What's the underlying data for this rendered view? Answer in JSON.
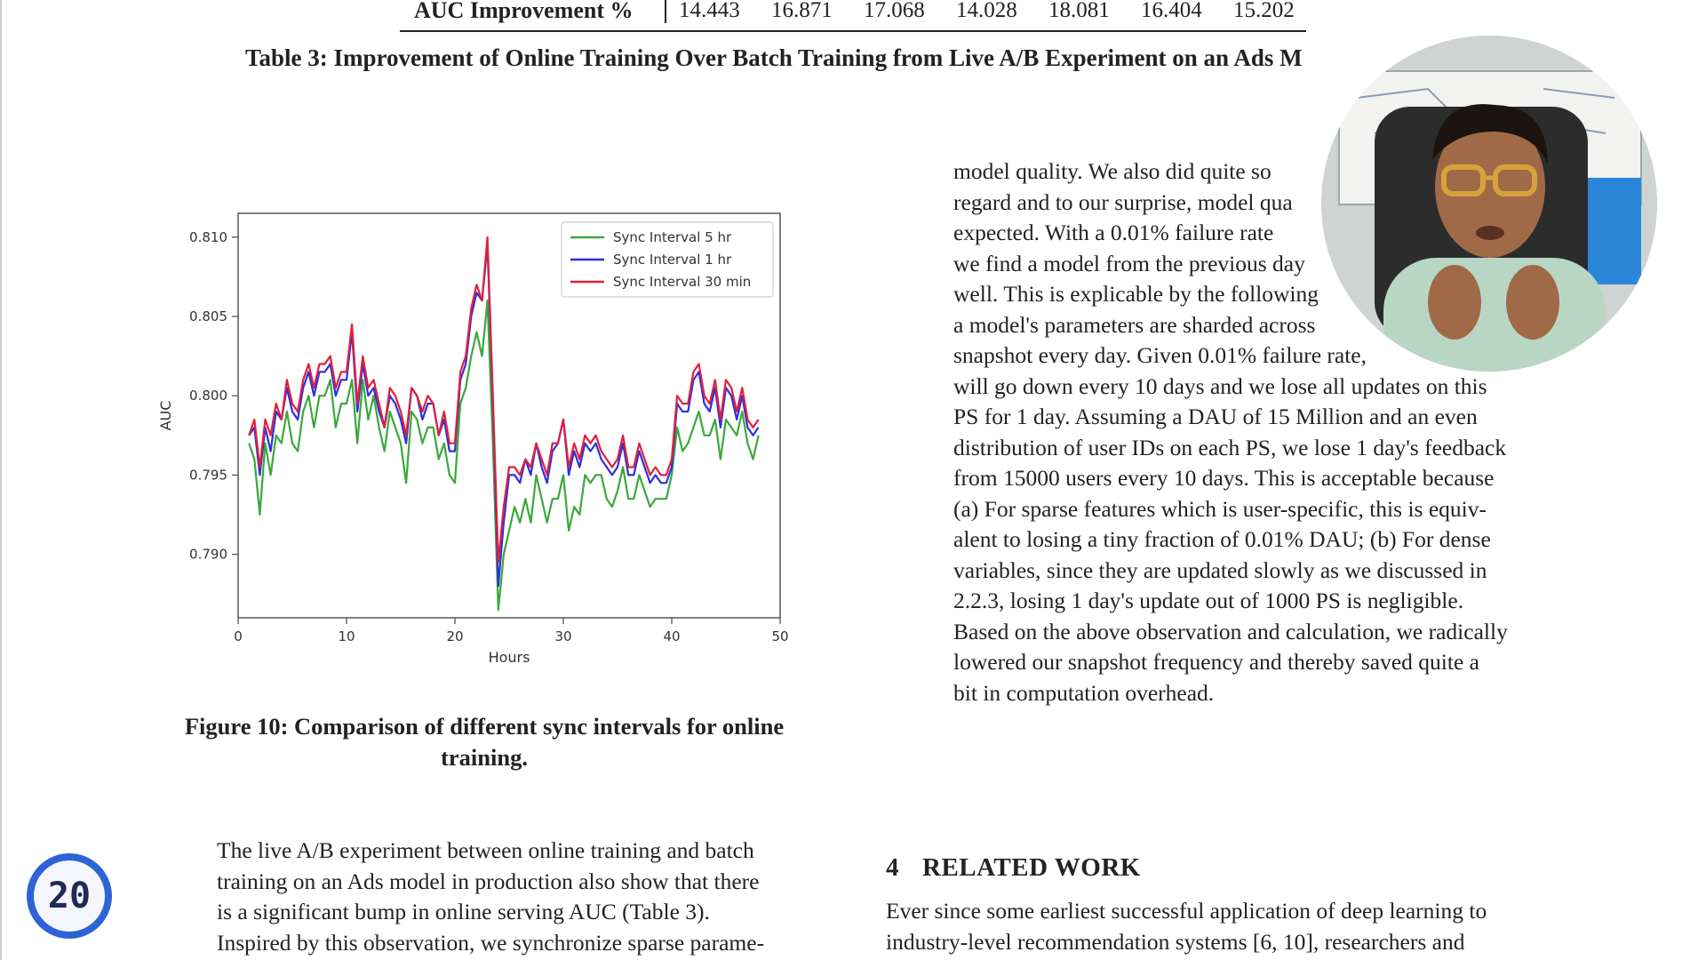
{
  "table_row": {
    "label": "AUC Improvement %",
    "values": [
      "14.443",
      "16.871",
      "17.068",
      "14.028",
      "18.081",
      "16.404",
      "15.202"
    ]
  },
  "table_caption": "Table 3: Improvement of Online Training Over Batch Training from Live A/B Experiment on an Ads M",
  "figure_caption": "Figure 10: Comparison of different sync intervals for online training.",
  "right_column_lines": [
    "model quality. We also did quite so",
    "regard and to our surprise, model qua",
    "expected. With a 0.01% failure rate",
    "we find a model from the previous day",
    "well. This is explicable by the following",
    "a model's parameters are sharded across",
    "snapshot every day. Given 0.01% failure rate,",
    "will go down every 10 days and we lose all updates on this",
    "PS for 1 day. Assuming a DAU of 15 Million and an even",
    "distribution of user IDs on each PS, we lose 1 day's feedback",
    "from 15000 users every 10 days. This is acceptable because",
    "(a) For sparse features which is user-specific, this is equiv-",
    "alent to losing a tiny fraction of 0.01% DAU; (b) For dense",
    "variables, since they are updated slowly as we discussed in",
    "2.2.3, losing 1 day's update out of 1000 PS is negligible.",
    "Based on the above observation and calculation, we radically",
    "lowered our snapshot frequency and thereby saved quite a",
    "bit in computation overhead."
  ],
  "left_bottom_lines": [
    "The live A/B experiment between online training and batch",
    "training on an Ads model in production also show that there",
    "is a significant bump in online serving AUC (Table 3).",
    "Inspired by this observation, we synchronize sparse parame-"
  ],
  "section": {
    "number": "4",
    "title": "RELATED WORK"
  },
  "related_work_lines": [
    "Ever since some earliest successful application of deep learning to",
    "industry-level recommendation systems [6, 10], researchers and"
  ],
  "counter": {
    "value": "20"
  },
  "colors": {
    "series_5hr": "#3aa83a",
    "series_1hr": "#2f2fe0",
    "series_30min": "#e0203a",
    "counter_ring": "#2d63d6"
  },
  "chart_data": {
    "type": "line",
    "title": "",
    "xlabel": "Hours",
    "ylabel": "AUC",
    "xlim": [
      0,
      50
    ],
    "ylim": [
      0.786,
      0.8115
    ],
    "xticks": [
      "0",
      "10",
      "20",
      "30",
      "40",
      "50"
    ],
    "yticks": [
      "0.790",
      "0.795",
      "0.800",
      "0.805",
      "0.810"
    ],
    "legend_position": "top-right",
    "grid": false,
    "x": [
      1,
      1.5,
      2,
      2.5,
      3,
      3.5,
      4,
      4.5,
      5,
      5.5,
      6,
      6.5,
      7,
      7.5,
      8,
      8.5,
      9,
      9.5,
      10,
      10.5,
      11,
      11.5,
      12,
      12.5,
      13,
      13.5,
      14,
      14.5,
      15,
      15.5,
      16,
      16.5,
      17,
      17.5,
      18,
      18.5,
      19,
      19.5,
      20,
      20.5,
      21,
      21.5,
      22,
      22.5,
      23,
      23.5,
      24,
      24.5,
      25,
      25.5,
      26,
      26.5,
      27,
      27.5,
      28,
      28.5,
      29,
      29.5,
      30,
      30.5,
      31,
      31.5,
      32,
      32.5,
      33,
      33.5,
      34,
      34.5,
      35,
      35.5,
      36,
      36.5,
      37,
      37.5,
      38,
      38.5,
      39,
      39.5,
      40,
      40.5,
      41,
      41.5,
      42,
      42.5,
      43,
      43.5,
      44,
      44.5,
      45,
      45.5,
      46,
      46.5,
      47,
      47.5,
      48
    ],
    "series": [
      {
        "name": "Sync Interval 5 hr",
        "values": [
          0.797,
          0.796,
          0.7925,
          0.797,
          0.795,
          0.7975,
          0.797,
          0.799,
          0.797,
          0.7965,
          0.799,
          0.8,
          0.798,
          0.8,
          0.8,
          0.801,
          0.798,
          0.7995,
          0.7995,
          0.801,
          0.797,
          0.801,
          0.7985,
          0.8,
          0.798,
          0.7965,
          0.799,
          0.798,
          0.797,
          0.7945,
          0.799,
          0.7985,
          0.797,
          0.798,
          0.798,
          0.796,
          0.797,
          0.795,
          0.7945,
          0.7995,
          0.8005,
          0.8025,
          0.804,
          0.8025,
          0.806,
          0.797,
          0.7865,
          0.79,
          0.7915,
          0.793,
          0.792,
          0.7935,
          0.792,
          0.795,
          0.7935,
          0.792,
          0.7935,
          0.7935,
          0.795,
          0.7915,
          0.793,
          0.7925,
          0.795,
          0.7945,
          0.795,
          0.795,
          0.7935,
          0.793,
          0.794,
          0.7955,
          0.7935,
          0.7935,
          0.795,
          0.794,
          0.793,
          0.7935,
          0.7935,
          0.7935,
          0.795,
          0.798,
          0.7965,
          0.797,
          0.798,
          0.799,
          0.7975,
          0.7975,
          0.7985,
          0.796,
          0.7985,
          0.798,
          0.7975,
          0.799,
          0.797,
          0.796,
          0.7975
        ]
      },
      {
        "name": "Sync Interval 1 hr",
        "values": [
          0.7975,
          0.798,
          0.795,
          0.798,
          0.7965,
          0.799,
          0.7985,
          0.8005,
          0.799,
          0.7985,
          0.8005,
          0.8015,
          0.8,
          0.8015,
          0.8015,
          0.802,
          0.8,
          0.801,
          0.801,
          0.804,
          0.799,
          0.802,
          0.8,
          0.8005,
          0.799,
          0.798,
          0.8,
          0.7995,
          0.7985,
          0.797,
          0.8005,
          0.8,
          0.7985,
          0.7995,
          0.7995,
          0.7975,
          0.7985,
          0.7965,
          0.7965,
          0.801,
          0.802,
          0.805,
          0.8065,
          0.806,
          0.8095,
          0.7995,
          0.788,
          0.792,
          0.795,
          0.795,
          0.7945,
          0.796,
          0.795,
          0.797,
          0.7955,
          0.7945,
          0.7965,
          0.797,
          0.7985,
          0.795,
          0.7965,
          0.7955,
          0.797,
          0.7965,
          0.797,
          0.796,
          0.7955,
          0.795,
          0.7955,
          0.797,
          0.795,
          0.795,
          0.7965,
          0.7955,
          0.7945,
          0.795,
          0.7945,
          0.7945,
          0.7955,
          0.7995,
          0.799,
          0.799,
          0.801,
          0.8015,
          0.7995,
          0.799,
          0.8005,
          0.798,
          0.8005,
          0.8,
          0.7985,
          0.8,
          0.798,
          0.7975,
          0.798
        ]
      },
      {
        "name": "Sync Interval 30 min",
        "values": [
          0.7975,
          0.7985,
          0.7955,
          0.7985,
          0.7975,
          0.7995,
          0.7985,
          0.801,
          0.7995,
          0.799,
          0.801,
          0.802,
          0.8005,
          0.802,
          0.802,
          0.8025,
          0.8005,
          0.8015,
          0.8015,
          0.8045,
          0.7995,
          0.8025,
          0.8005,
          0.801,
          0.7995,
          0.798,
          0.8005,
          0.8,
          0.799,
          0.7975,
          0.8005,
          0.8,
          0.799,
          0.8,
          0.7995,
          0.7975,
          0.799,
          0.797,
          0.797,
          0.8015,
          0.8025,
          0.8055,
          0.807,
          0.806,
          0.81,
          0.8,
          0.7895,
          0.793,
          0.7955,
          0.7955,
          0.795,
          0.796,
          0.7955,
          0.797,
          0.796,
          0.795,
          0.797,
          0.797,
          0.7985,
          0.7955,
          0.797,
          0.796,
          0.7975,
          0.797,
          0.7975,
          0.7965,
          0.796,
          0.7955,
          0.796,
          0.7975,
          0.7955,
          0.7955,
          0.797,
          0.796,
          0.795,
          0.7955,
          0.795,
          0.795,
          0.796,
          0.8,
          0.7995,
          0.7995,
          0.8015,
          0.802,
          0.8,
          0.7995,
          0.801,
          0.7985,
          0.801,
          0.8005,
          0.799,
          0.8005,
          0.7985,
          0.798,
          0.7985
        ]
      }
    ]
  }
}
